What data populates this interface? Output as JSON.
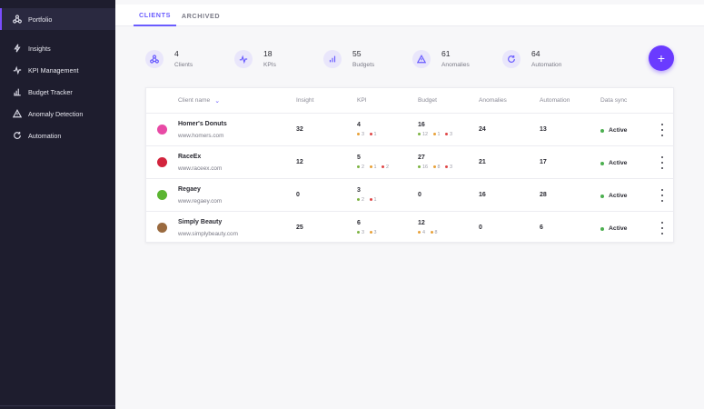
{
  "sidebar": {
    "items": [
      {
        "label": "Portfolio",
        "icon": "portfolio-icon",
        "active": true
      },
      {
        "label": "Insights",
        "icon": "insights-icon"
      },
      {
        "label": "KPI Management",
        "icon": "kpi-icon"
      },
      {
        "label": "Budget Tracker",
        "icon": "budget-icon"
      },
      {
        "label": "Anomaly Detection",
        "icon": "warning-icon"
      },
      {
        "label": "Automation",
        "icon": "refresh-icon"
      }
    ]
  },
  "tabs": [
    {
      "label": "CLIENTS",
      "active": true
    },
    {
      "label": "ARCHIVED",
      "active": false
    }
  ],
  "stats": [
    {
      "value": "4",
      "label": "Clients",
      "icon": "clients-icon"
    },
    {
      "value": "18",
      "label": "KPIs",
      "icon": "kpi-icon"
    },
    {
      "value": "55",
      "label": "Budgets",
      "icon": "budget-icon"
    },
    {
      "value": "61",
      "label": "Anomalies",
      "icon": "warning-icon"
    },
    {
      "value": "64",
      "label": "Automation",
      "icon": "refresh-icon"
    }
  ],
  "fab": {
    "label": "+",
    "icon": "plus-icon"
  },
  "table": {
    "headers": {
      "client": "Client name",
      "insight": "Insight",
      "kpi": "KPI",
      "budget": "Budget",
      "anomalies": "Anomalies",
      "automation": "Automation",
      "sync": "Data sync"
    },
    "rows": [
      {
        "name": "Homer's Donuts",
        "url": "www.homers.com",
        "insight": "32",
        "kpi": "4",
        "kpi_sub": [
          "3",
          "1"
        ],
        "budget": "16",
        "budget_sub": [
          "12",
          "1",
          "3"
        ],
        "anomalies": "24",
        "automation": "13",
        "sync": "Active",
        "logo_color": "#e84aa5"
      },
      {
        "name": "RaceEx",
        "url": "www.raceex.com",
        "insight": "12",
        "kpi": "5",
        "kpi_sub": [
          "2",
          "1",
          "2"
        ],
        "budget": "27",
        "budget_sub": [
          "16",
          "8",
          "3"
        ],
        "anomalies": "21",
        "automation": "17",
        "sync": "Active",
        "logo_color": "#d2243d"
      },
      {
        "name": "Regaey",
        "url": "www.regaey.com",
        "insight": "0",
        "kpi": "3",
        "kpi_sub": [
          "2",
          "1"
        ],
        "budget": "0",
        "anomalies": "16",
        "automation": "28",
        "sync": "Active",
        "logo_color": "#5bb531"
      },
      {
        "name": "Simply Beauty",
        "url": "www.simplybeauty.com",
        "insight": "25",
        "kpi": "6",
        "kpi_sub": [
          "3",
          "3"
        ],
        "budget": "12",
        "budget_sub": [
          "4",
          "8"
        ],
        "anomalies": "0",
        "automation": "6",
        "sync": "Active",
        "logo_color": "#9a6a3f"
      }
    ]
  },
  "colors": {
    "accent": "#6a5cff",
    "dot_green": "#7cb342",
    "dot_orange": "#e8a13a",
    "dot_red": "#e04848",
    "active_green": "#4caf50"
  }
}
